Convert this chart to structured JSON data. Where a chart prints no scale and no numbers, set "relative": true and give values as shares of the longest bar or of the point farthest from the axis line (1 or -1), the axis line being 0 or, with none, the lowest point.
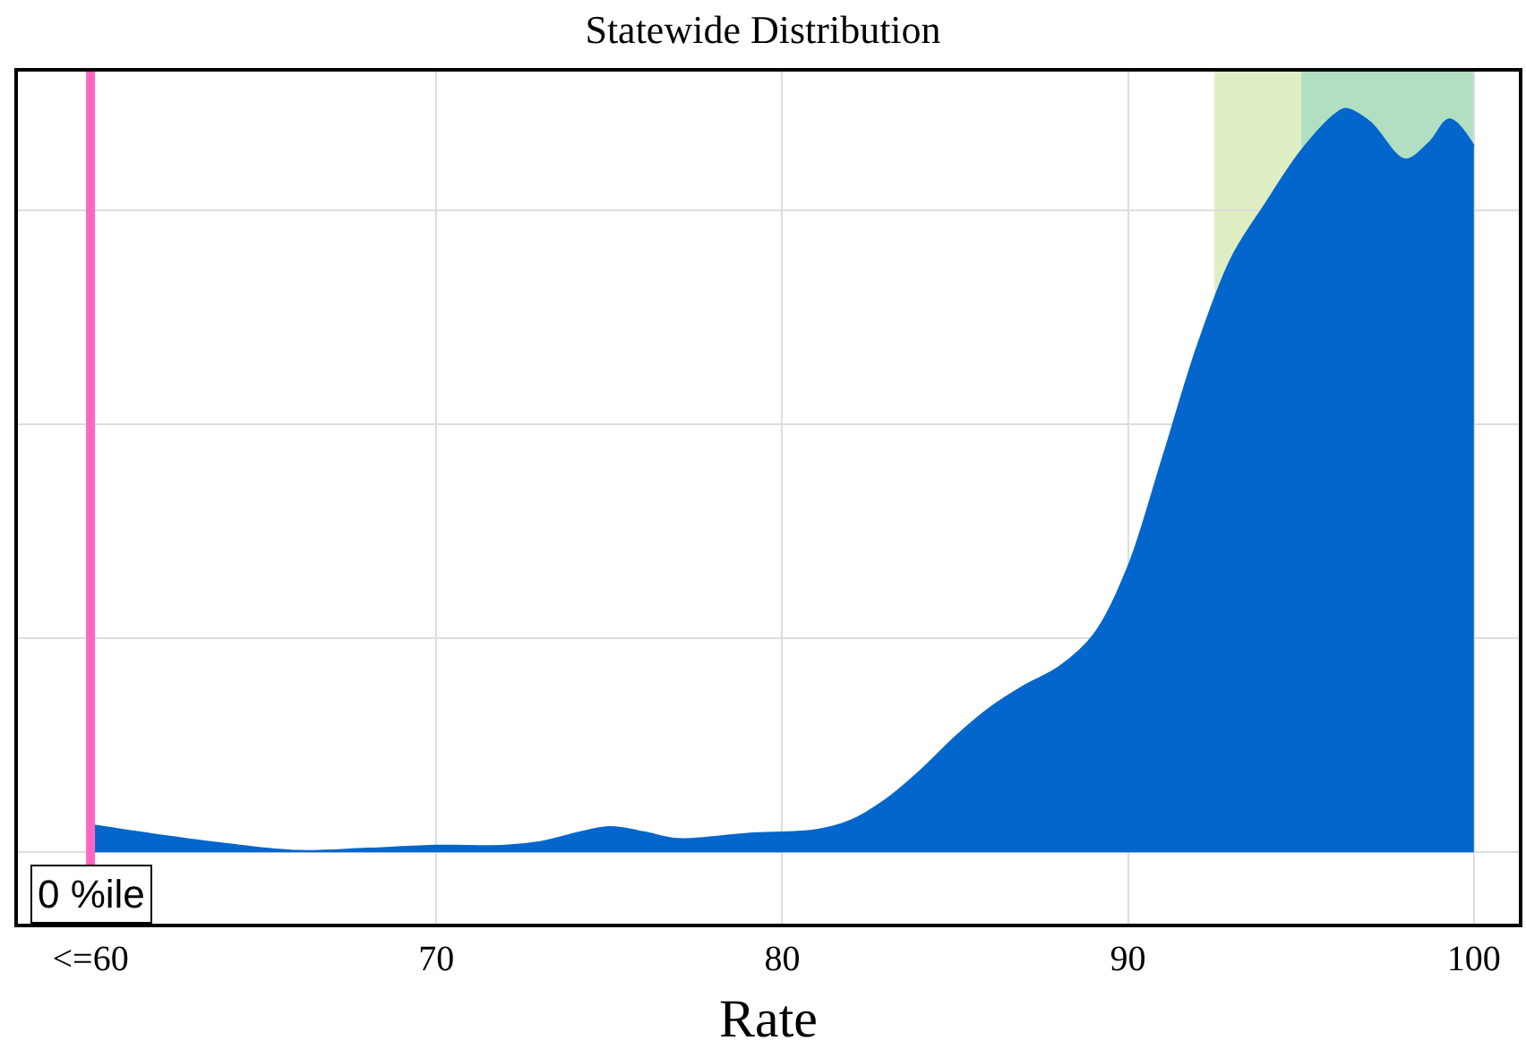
{
  "chart_data": {
    "type": "area",
    "title": "Statewide Distribution",
    "xlabel": "Rate",
    "relative": true,
    "x": [
      60,
      62,
      64,
      66,
      68,
      70,
      72,
      73,
      75,
      76,
      77,
      79,
      81,
      82,
      83,
      84,
      85,
      86,
      87,
      88,
      89,
      90,
      91,
      92,
      93,
      94,
      95,
      96,
      96.3,
      97,
      98,
      98.7,
      99.3,
      100
    ],
    "series": [
      {
        "color": "#0366cc",
        "values": [
          0.037,
          0.023,
          0.011,
          0.002,
          0.005,
          0.009,
          0.009,
          0.014,
          0.034,
          0.027,
          0.018,
          0.025,
          0.03,
          0.043,
          0.071,
          0.11,
          0.155,
          0.194,
          0.224,
          0.249,
          0.292,
          0.384,
          0.53,
          0.68,
          0.8,
          0.874,
          0.943,
          0.993,
          1,
          0.982,
          0.932,
          0.954,
          0.986,
          0.95
        ]
      }
    ],
    "xlim": [
      57.9,
      101.3
    ],
    "xticks": [
      {
        "value": 60,
        "label": "<=60"
      },
      70,
      80,
      90,
      100
    ],
    "bands": [
      {
        "axis": "x",
        "from": 92.5,
        "to": 95,
        "color": "#dfedc3"
      },
      {
        "axis": "x",
        "from": 95,
        "to": 100,
        "color": "#b1dfc2"
      }
    ],
    "ref_lines": [
      {
        "axis": "x",
        "value": 60,
        "label": "0 %ile",
        "color": "#ff66c4"
      }
    ],
    "grid": true
  }
}
